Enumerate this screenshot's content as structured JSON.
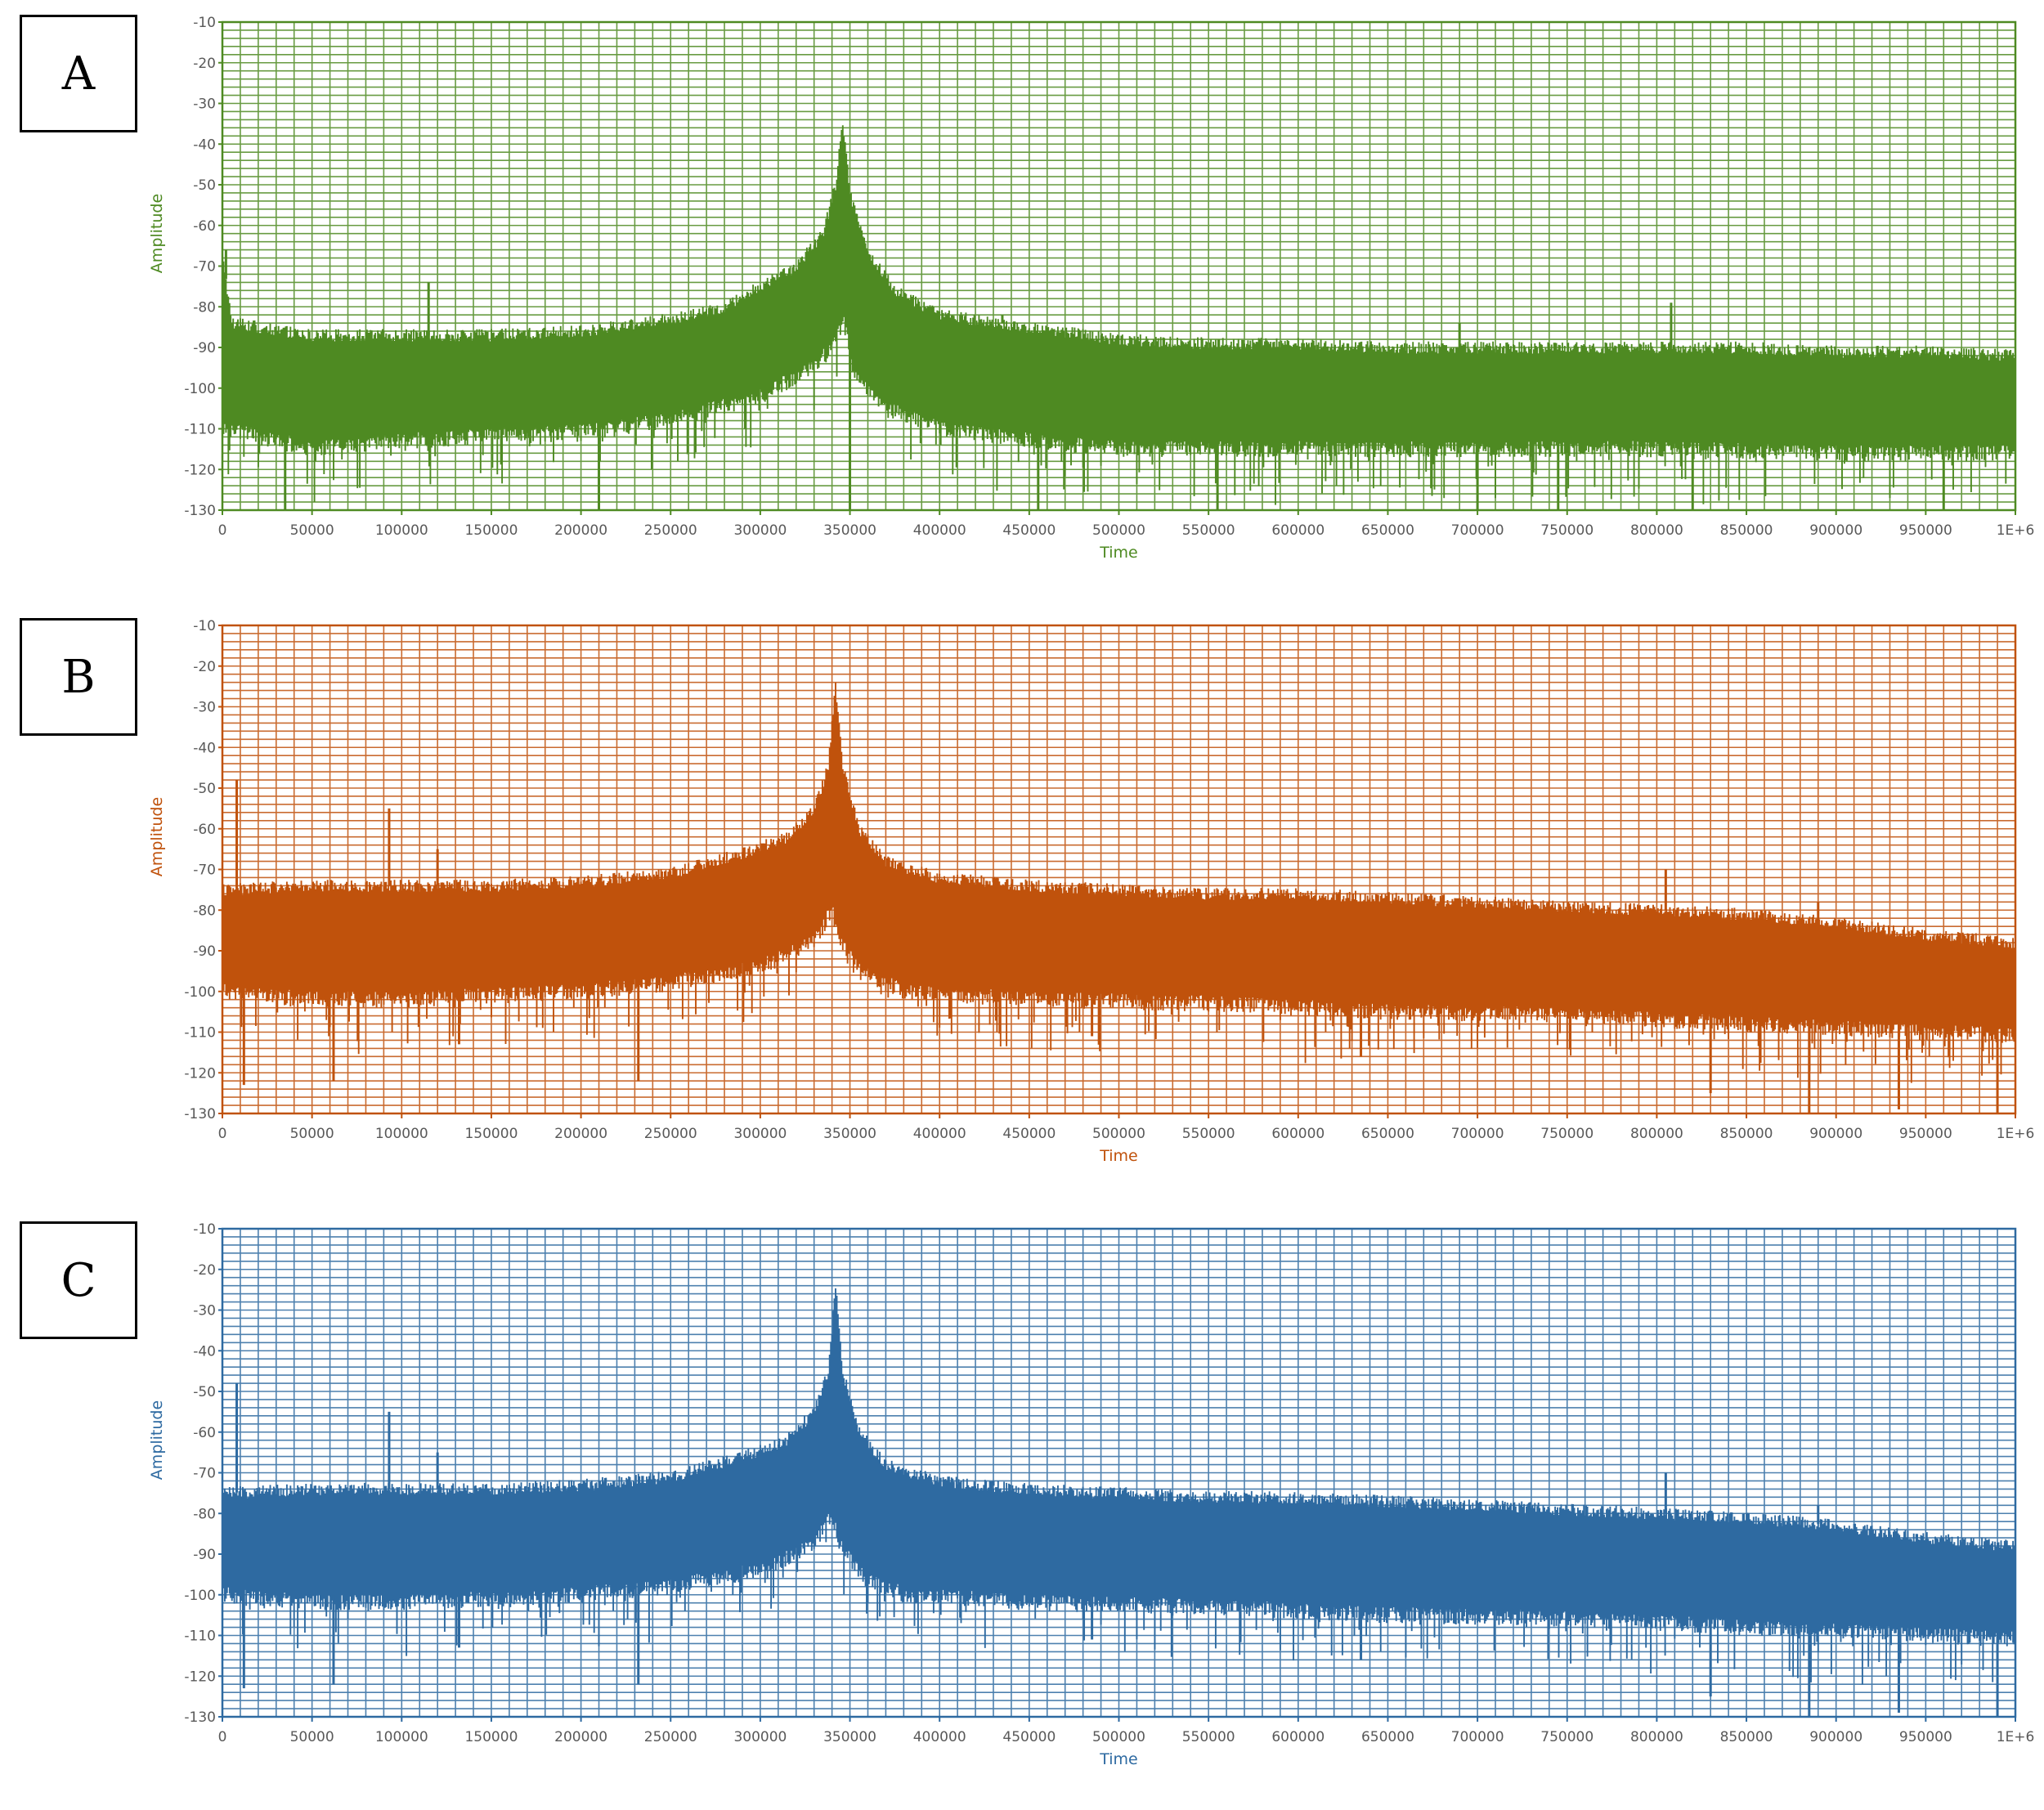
{
  "chart_data": [
    {
      "type": "line",
      "panel_label": "A",
      "color": "#4e8a22",
      "xlabel": "Time",
      "ylabel": "Amplitude",
      "xlim": [
        0,
        1000000
      ],
      "ylim": [
        -130,
        -10
      ],
      "xticks": [
        0,
        50000,
        100000,
        150000,
        200000,
        250000,
        300000,
        350000,
        400000,
        450000,
        500000,
        550000,
        600000,
        650000,
        700000,
        750000,
        800000,
        850000,
        900000,
        950000,
        1000000
      ],
      "xtick_labels": [
        "0",
        "50000",
        "100000",
        "150000",
        "200000",
        "250000",
        "300000",
        "350000",
        "400000",
        "450000",
        "500000",
        "550000",
        "600000",
        "650000",
        "700000",
        "750000",
        "800000",
        "850000",
        "900000",
        "950000",
        "1E+6"
      ],
      "yticks": [
        -10,
        -20,
        -30,
        -40,
        -50,
        -60,
        -70,
        -80,
        -90,
        -100,
        -110,
        -120,
        -130
      ],
      "ytick_labels": [
        "-10",
        "-20",
        "-30",
        "-40",
        "-50",
        "-60",
        "-70",
        "-80",
        "-90",
        "-100",
        "-110",
        "-120",
        "-130"
      ],
      "grid": true,
      "series": [
        {
          "envelope_top": [
            [
              0,
              -66
            ],
            [
              5000,
              -84
            ],
            [
              50000,
              -87
            ],
            [
              100000,
              -87
            ],
            [
              150000,
              -87
            ],
            [
              200000,
              -86
            ],
            [
              250000,
              -83
            ],
            [
              280000,
              -80
            ],
            [
              300000,
              -75
            ],
            [
              320000,
              -70
            ],
            [
              335000,
              -62
            ],
            [
              342000,
              -50
            ],
            [
              346000,
              -34
            ],
            [
              350000,
              -52
            ],
            [
              360000,
              -66
            ],
            [
              375000,
              -76
            ],
            [
              400000,
              -82
            ],
            [
              450000,
              -85
            ],
            [
              500000,
              -88
            ],
            [
              550000,
              -89
            ],
            [
              600000,
              -89
            ],
            [
              650000,
              -90
            ],
            [
              700000,
              -90
            ],
            [
              750000,
              -90
            ],
            [
              800000,
              -90
            ],
            [
              850000,
              -90
            ],
            [
              900000,
              -91
            ],
            [
              950000,
              -91
            ],
            [
              1000000,
              -92
            ]
          ],
          "envelope_bottom": [
            [
              0,
              -108
            ],
            [
              50000,
              -113
            ],
            [
              100000,
              -111
            ],
            [
              150000,
              -110
            ],
            [
              200000,
              -109
            ],
            [
              250000,
              -106
            ],
            [
              300000,
              -100
            ],
            [
              330000,
              -93
            ],
            [
              340000,
              -88
            ],
            [
              346000,
              -80
            ],
            [
              352000,
              -95
            ],
            [
              370000,
              -103
            ],
            [
              400000,
              -108
            ],
            [
              450000,
              -111
            ],
            [
              500000,
              -113
            ],
            [
              600000,
              -113
            ],
            [
              700000,
              -113
            ],
            [
              800000,
              -113
            ],
            [
              900000,
              -114
            ],
            [
              1000000,
              -114
            ]
          ],
          "spikes": [
            [
              2000,
              -66
            ],
            [
              115000,
              -74
            ],
            [
              435000,
              -82
            ],
            [
              690000,
              -84
            ],
            [
              808000,
              -79
            ]
          ],
          "troughs": [
            [
              35000,
              -130
            ],
            [
              210000,
              -130
            ],
            [
              350000,
              -130
            ],
            [
              455000,
              -130
            ],
            [
              555000,
              -130
            ],
            [
              700000,
              -130
            ],
            [
              745000,
              -130
            ],
            [
              820000,
              -130
            ],
            [
              960000,
              -130
            ]
          ]
        }
      ]
    },
    {
      "type": "line",
      "panel_label": "B",
      "color": "#c0520c",
      "xlabel": "Time",
      "ylabel": "Amplitude",
      "xlim": [
        0,
        1000000
      ],
      "ylim": [
        -130,
        -10
      ],
      "xticks": [
        0,
        50000,
        100000,
        150000,
        200000,
        250000,
        300000,
        350000,
        400000,
        450000,
        500000,
        550000,
        600000,
        650000,
        700000,
        750000,
        800000,
        850000,
        900000,
        950000,
        1000000
      ],
      "xtick_labels": [
        "0",
        "50000",
        "100000",
        "150000",
        "200000",
        "250000",
        "300000",
        "350000",
        "400000",
        "450000",
        "500000",
        "550000",
        "600000",
        "650000",
        "700000",
        "750000",
        "800000",
        "850000",
        "900000",
        "950000",
        "1E+6"
      ],
      "yticks": [
        -10,
        -20,
        -30,
        -40,
        -50,
        -60,
        -70,
        -80,
        -90,
        -100,
        -110,
        -120,
        -130
      ],
      "ytick_labels": [
        "-10",
        "-20",
        "-30",
        "-40",
        "-50",
        "-60",
        "-70",
        "-80",
        "-90",
        "-100",
        "-110",
        "-120",
        "-130"
      ],
      "grid": true,
      "series": [
        {
          "envelope_top": [
            [
              0,
              -75
            ],
            [
              50000,
              -74
            ],
            [
              100000,
              -74
            ],
            [
              150000,
              -74
            ],
            [
              200000,
              -73
            ],
            [
              250000,
              -71
            ],
            [
              290000,
              -66
            ],
            [
              315000,
              -62
            ],
            [
              330000,
              -55
            ],
            [
              338000,
              -45
            ],
            [
              342000,
              -24
            ],
            [
              346000,
              -45
            ],
            [
              355000,
              -60
            ],
            [
              370000,
              -68
            ],
            [
              400000,
              -72
            ],
            [
              450000,
              -74
            ],
            [
              500000,
              -75
            ],
            [
              550000,
              -76
            ],
            [
              600000,
              -76
            ],
            [
              650000,
              -77
            ],
            [
              700000,
              -78
            ],
            [
              750000,
              -79
            ],
            [
              800000,
              -80
            ],
            [
              850000,
              -81
            ],
            [
              900000,
              -83
            ],
            [
              950000,
              -86
            ],
            [
              1000000,
              -88
            ]
          ],
          "envelope_bottom": [
            [
              0,
              -98
            ],
            [
              50000,
              -100
            ],
            [
              100000,
              -100
            ],
            [
              150000,
              -99
            ],
            [
              200000,
              -98
            ],
            [
              250000,
              -96
            ],
            [
              300000,
              -92
            ],
            [
              330000,
              -86
            ],
            [
              340000,
              -78
            ],
            [
              344000,
              -85
            ],
            [
              355000,
              -93
            ],
            [
              380000,
              -98
            ],
            [
              450000,
              -100
            ],
            [
              550000,
              -101
            ],
            [
              650000,
              -103
            ],
            [
              750000,
              -104
            ],
            [
              850000,
              -106
            ],
            [
              950000,
              -108
            ],
            [
              1000000,
              -109
            ]
          ],
          "spikes": [
            [
              8000,
              -48
            ],
            [
              93000,
              -55
            ],
            [
              120000,
              -65
            ],
            [
              430000,
              -72
            ],
            [
              805000,
              -70
            ],
            [
              890000,
              -78
            ]
          ],
          "troughs": [
            [
              12000,
              -123
            ],
            [
              62000,
              -122
            ],
            [
              132000,
              -113
            ],
            [
              232000,
              -122
            ],
            [
              485000,
              -111
            ],
            [
              635000,
              -116
            ],
            [
              830000,
              -125
            ],
            [
              885000,
              -130
            ],
            [
              935000,
              -129
            ],
            [
              990000,
              -130
            ]
          ]
        }
      ]
    },
    {
      "type": "line",
      "panel_label": "C",
      "color": "#2e6aa1",
      "xlabel": "Time",
      "ylabel": "Amplitude",
      "xlim": [
        0,
        1000000
      ],
      "ylim": [
        -130,
        -10
      ],
      "xticks": [
        0,
        50000,
        100000,
        150000,
        200000,
        250000,
        300000,
        350000,
        400000,
        450000,
        500000,
        550000,
        600000,
        650000,
        700000,
        750000,
        800000,
        850000,
        900000,
        950000,
        1000000
      ],
      "xtick_labels": [
        "0",
        "50000",
        "100000",
        "150000",
        "200000",
        "250000",
        "300000",
        "350000",
        "400000",
        "450000",
        "500000",
        "550000",
        "600000",
        "650000",
        "700000",
        "750000",
        "800000",
        "850000",
        "900000",
        "950000",
        "1E+6"
      ],
      "yticks": [
        -10,
        -20,
        -30,
        -40,
        -50,
        -60,
        -70,
        -80,
        -90,
        -100,
        -110,
        -120,
        -130
      ],
      "ytick_labels": [
        "-10",
        "-20",
        "-30",
        "-40",
        "-50",
        "-60",
        "-70",
        "-80",
        "-90",
        "-100",
        "-110",
        "-120",
        "-130"
      ],
      "grid": true,
      "series": [
        {
          "envelope_top": [
            [
              0,
              -75
            ],
            [
              50000,
              -74
            ],
            [
              100000,
              -74
            ],
            [
              150000,
              -74
            ],
            [
              200000,
              -73
            ],
            [
              250000,
              -71
            ],
            [
              290000,
              -66
            ],
            [
              315000,
              -62
            ],
            [
              330000,
              -55
            ],
            [
              338000,
              -45
            ],
            [
              342000,
              -24
            ],
            [
              346000,
              -45
            ],
            [
              355000,
              -60
            ],
            [
              370000,
              -68
            ],
            [
              400000,
              -72
            ],
            [
              450000,
              -74
            ],
            [
              500000,
              -75
            ],
            [
              550000,
              -76
            ],
            [
              600000,
              -76
            ],
            [
              650000,
              -77
            ],
            [
              700000,
              -78
            ],
            [
              750000,
              -79
            ],
            [
              800000,
              -80
            ],
            [
              850000,
              -81
            ],
            [
              900000,
              -83
            ],
            [
              950000,
              -86
            ],
            [
              1000000,
              -88
            ]
          ],
          "envelope_bottom": [
            [
              0,
              -98
            ],
            [
              50000,
              -100
            ],
            [
              100000,
              -100
            ],
            [
              150000,
              -99
            ],
            [
              200000,
              -98
            ],
            [
              250000,
              -96
            ],
            [
              300000,
              -92
            ],
            [
              330000,
              -86
            ],
            [
              340000,
              -78
            ],
            [
              344000,
              -85
            ],
            [
              355000,
              -93
            ],
            [
              380000,
              -98
            ],
            [
              450000,
              -100
            ],
            [
              550000,
              -101
            ],
            [
              650000,
              -103
            ],
            [
              750000,
              -104
            ],
            [
              850000,
              -106
            ],
            [
              950000,
              -108
            ],
            [
              1000000,
              -109
            ]
          ],
          "spikes": [
            [
              8000,
              -48
            ],
            [
              93000,
              -55
            ],
            [
              120000,
              -65
            ],
            [
              430000,
              -72
            ],
            [
              805000,
              -70
            ],
            [
              890000,
              -78
            ]
          ],
          "troughs": [
            [
              12000,
              -123
            ],
            [
              62000,
              -122
            ],
            [
              132000,
              -113
            ],
            [
              232000,
              -122
            ],
            [
              485000,
              -111
            ],
            [
              635000,
              -116
            ],
            [
              830000,
              -125
            ],
            [
              885000,
              -130
            ],
            [
              935000,
              -129
            ],
            [
              990000,
              -130
            ]
          ]
        }
      ]
    }
  ]
}
